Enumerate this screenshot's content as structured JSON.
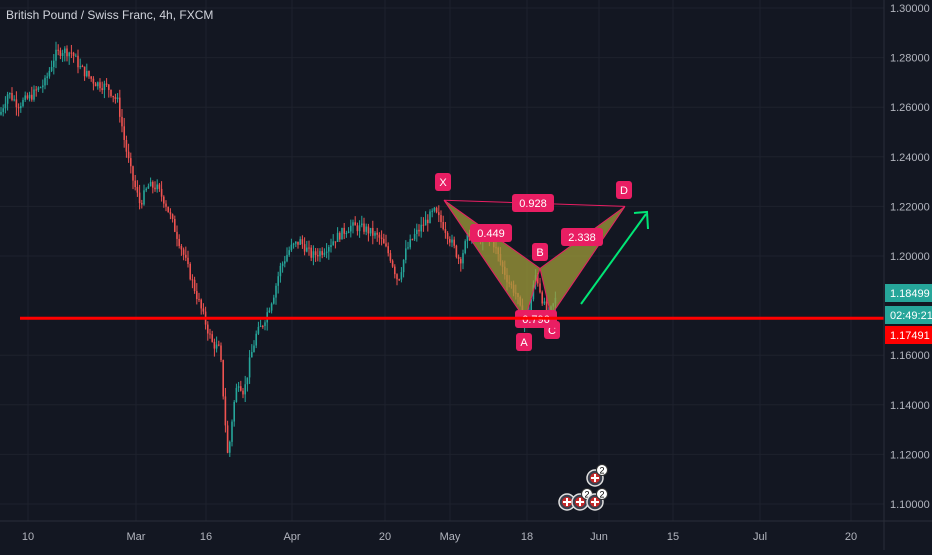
{
  "header": {
    "symbol_title": "British Pound / Swiss Franc, 4h, FXCM"
  },
  "chart_data": {
    "type": "candlestick",
    "y_range": [
      1.09,
      1.305
    ],
    "y_ticks": [
      "1.30000",
      "1.28000",
      "1.26000",
      "1.24000",
      "1.22000",
      "1.20000",
      "1.16000",
      "1.14000",
      "1.12000",
      "1.10000"
    ],
    "x_ticks": [
      "10",
      "Mar",
      "16",
      "Apr",
      "20",
      "May",
      "18",
      "Jun",
      "15",
      "Jul",
      "20"
    ],
    "price_path": [
      [
        0,
        1.257
      ],
      [
        8,
        1.266
      ],
      [
        18,
        1.261
      ],
      [
        30,
        1.264
      ],
      [
        45,
        1.27
      ],
      [
        55,
        1.281
      ],
      [
        62,
        1.283
      ],
      [
        72,
        1.282
      ],
      [
        80,
        1.276
      ],
      [
        95,
        1.27
      ],
      [
        108,
        1.268
      ],
      [
        118,
        1.262
      ],
      [
        125,
        1.245
      ],
      [
        132,
        1.232
      ],
      [
        140,
        1.221
      ],
      [
        148,
        1.228
      ],
      [
        156,
        1.228
      ],
      [
        165,
        1.222
      ],
      [
        172,
        1.214
      ],
      [
        180,
        1.205
      ],
      [
        188,
        1.195
      ],
      [
        196,
        1.185
      ],
      [
        204,
        1.175
      ],
      [
        212,
        1.165
      ],
      [
        220,
        1.162
      ],
      [
        224,
        1.14
      ],
      [
        228,
        1.118
      ],
      [
        233,
        1.138
      ],
      [
        238,
        1.15
      ],
      [
        244,
        1.145
      ],
      [
        250,
        1.158
      ],
      [
        256,
        1.168
      ],
      [
        262,
        1.172
      ],
      [
        268,
        1.178
      ],
      [
        274,
        1.185
      ],
      [
        280,
        1.195
      ],
      [
        290,
        1.203
      ],
      [
        300,
        1.206
      ],
      [
        312,
        1.2
      ],
      [
        322,
        1.202
      ],
      [
        335,
        1.207
      ],
      [
        350,
        1.212
      ],
      [
        365,
        1.211
      ],
      [
        380,
        1.207
      ],
      [
        390,
        1.2
      ],
      [
        398,
        1.19
      ],
      [
        406,
        1.202
      ],
      [
        414,
        1.208
      ],
      [
        424,
        1.213
      ],
      [
        434,
        1.218
      ],
      [
        444,
        1.212
      ],
      [
        452,
        1.205
      ],
      [
        460,
        1.198
      ],
      [
        468,
        1.208
      ],
      [
        476,
        1.209
      ],
      [
        484,
        1.206
      ],
      [
        492,
        1.207
      ],
      [
        500,
        1.198
      ],
      [
        508,
        1.19
      ],
      [
        516,
        1.185
      ],
      [
        524,
        1.172
      ],
      [
        530,
        1.18
      ],
      [
        536,
        1.193
      ],
      [
        542,
        1.183
      ],
      [
        548,
        1.175
      ],
      [
        556,
        1.183
      ]
    ],
    "harmonic_pattern": {
      "points": [
        {
          "label": "X",
          "price": 1.2225
        },
        {
          "label": "A",
          "price": 1.1747
        },
        {
          "label": "B",
          "price": 1.1952
        },
        {
          "label": "C",
          "price": 1.1762
        },
        {
          "label": "D",
          "price": 1.22
        }
      ],
      "ratios": [
        "0.928",
        "0.449",
        "2.338",
        "0.796"
      ]
    },
    "horizontal_level": 1.17491,
    "price_labels": {
      "current": "1.18499",
      "countdown": "02:49:21",
      "level": "1.17491"
    },
    "event_badges": [
      "2",
      "2",
      "2"
    ]
  },
  "colors": {
    "background": "#131722",
    "grid": "#1e222d",
    "axis_text": "#b2b5be",
    "up": "#26a69a",
    "down": "#ef5350",
    "pattern_fill": "#a29c3a",
    "pattern_stroke": "#e91e63",
    "red_line": "#ff0000",
    "green_arrow": "#00e676",
    "current_price": "#26a69a"
  }
}
